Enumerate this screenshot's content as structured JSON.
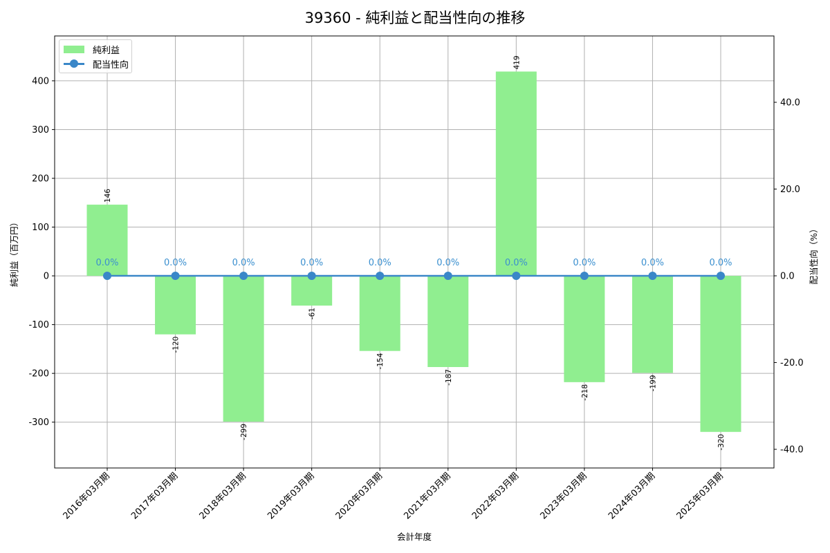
{
  "chart_data": {
    "type": "bar+line",
    "title": "39360 - 純利益と配当性向の推移",
    "xlabel": "会計年度",
    "ylabel_left": "純利益（百万円）",
    "ylabel_right": "配当性向（%）",
    "categories": [
      "2016年03月期",
      "2017年03月期",
      "2018年03月期",
      "2019年03月期",
      "2020年03月期",
      "2021年03月期",
      "2022年03月期",
      "2023年03月期",
      "2024年03月期",
      "2025年03月期"
    ],
    "series": [
      {
        "name": "純利益",
        "type": "bar",
        "axis": "left",
        "color": "#90ee90",
        "values": [
          146,
          -120,
          -299,
          -61,
          -154,
          -187,
          419,
          -218,
          -199,
          -320
        ],
        "labels": [
          "146",
          "-120",
          "-299",
          "-61",
          "-154",
          "-187",
          "419",
          "-218",
          "-199",
          "-320"
        ]
      },
      {
        "name": "配当性向",
        "type": "line",
        "axis": "right",
        "color": "#3a87c8",
        "values": [
          0.0,
          0.0,
          0.0,
          0.0,
          0.0,
          0.0,
          0.0,
          0.0,
          0.0,
          0.0
        ],
        "labels": [
          "0.0%",
          "0.0%",
          "0.0%",
          "0.0%",
          "0.0%",
          "0.0%",
          "0.0%",
          "0.0%",
          "0.0%",
          "0.0%"
        ]
      }
    ],
    "ylim_left": [
      -394,
      492
    ],
    "yticks_left": [
      -300,
      -200,
      -100,
      0,
      100,
      200,
      300,
      400
    ],
    "ytick_labels_left": [
      "-300",
      "-200",
      "-100",
      "0",
      "100",
      "200",
      "300",
      "400"
    ],
    "ylim_right": [
      -44.3,
      55.3
    ],
    "yticks_right": [
      -40,
      -20,
      0,
      20,
      40
    ],
    "ytick_labels_right": [
      "-40.0",
      "-20.0",
      "0.0",
      "20.0",
      "40.0"
    ],
    "grid": true,
    "legend_position": "upper left"
  },
  "legend": {
    "items": [
      {
        "label": "純利益",
        "kind": "bar"
      },
      {
        "label": "配当性向",
        "kind": "line-marker"
      }
    ]
  }
}
